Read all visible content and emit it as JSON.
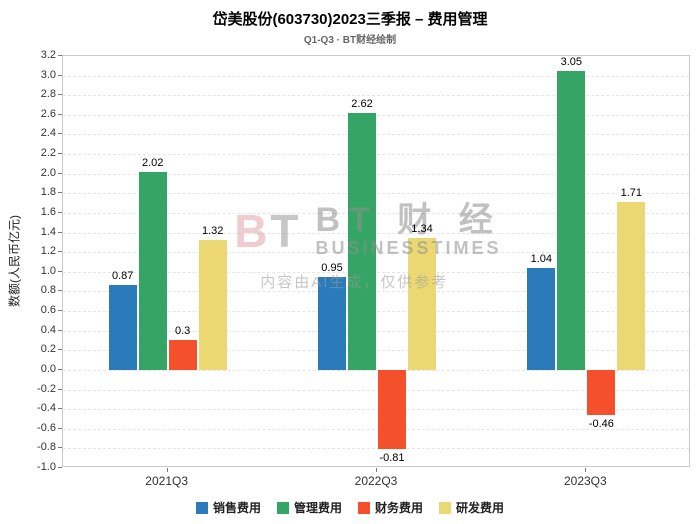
{
  "watermark": {
    "logo_b": "B",
    "logo_t": "T",
    "brand_cn": "BT 财 经",
    "brand_en": "BUSINESSTIMES",
    "disclaimer": "内容由AI生成，仅供参考"
  },
  "chart_data": {
    "type": "bar",
    "title": "岱美股份(603730)2023三季报 – 费用管理",
    "subtitle": "Q1-Q3 · BT财经绘制",
    "categories": [
      "2021Q3",
      "2022Q3",
      "2023Q3"
    ],
    "series": [
      {
        "name": "销售费用",
        "color": "#2b7bba",
        "values": [
          0.87,
          0.95,
          1.04
        ]
      },
      {
        "name": "管理费用",
        "color": "#35a566",
        "values": [
          2.02,
          2.62,
          3.05
        ]
      },
      {
        "name": "财务费用",
        "color": "#f4502c",
        "values": [
          0.3,
          -0.81,
          -0.46
        ]
      },
      {
        "name": "研发费用",
        "color": "#ecd873",
        "values": [
          1.32,
          1.34,
          1.71
        ]
      }
    ],
    "xlabel": "",
    "ylabel": "数额(人民币亿元)",
    "ylim": [
      -1.0,
      3.2
    ],
    "ytick_step": 0.2,
    "grid": true,
    "legend_position": "bottom"
  }
}
